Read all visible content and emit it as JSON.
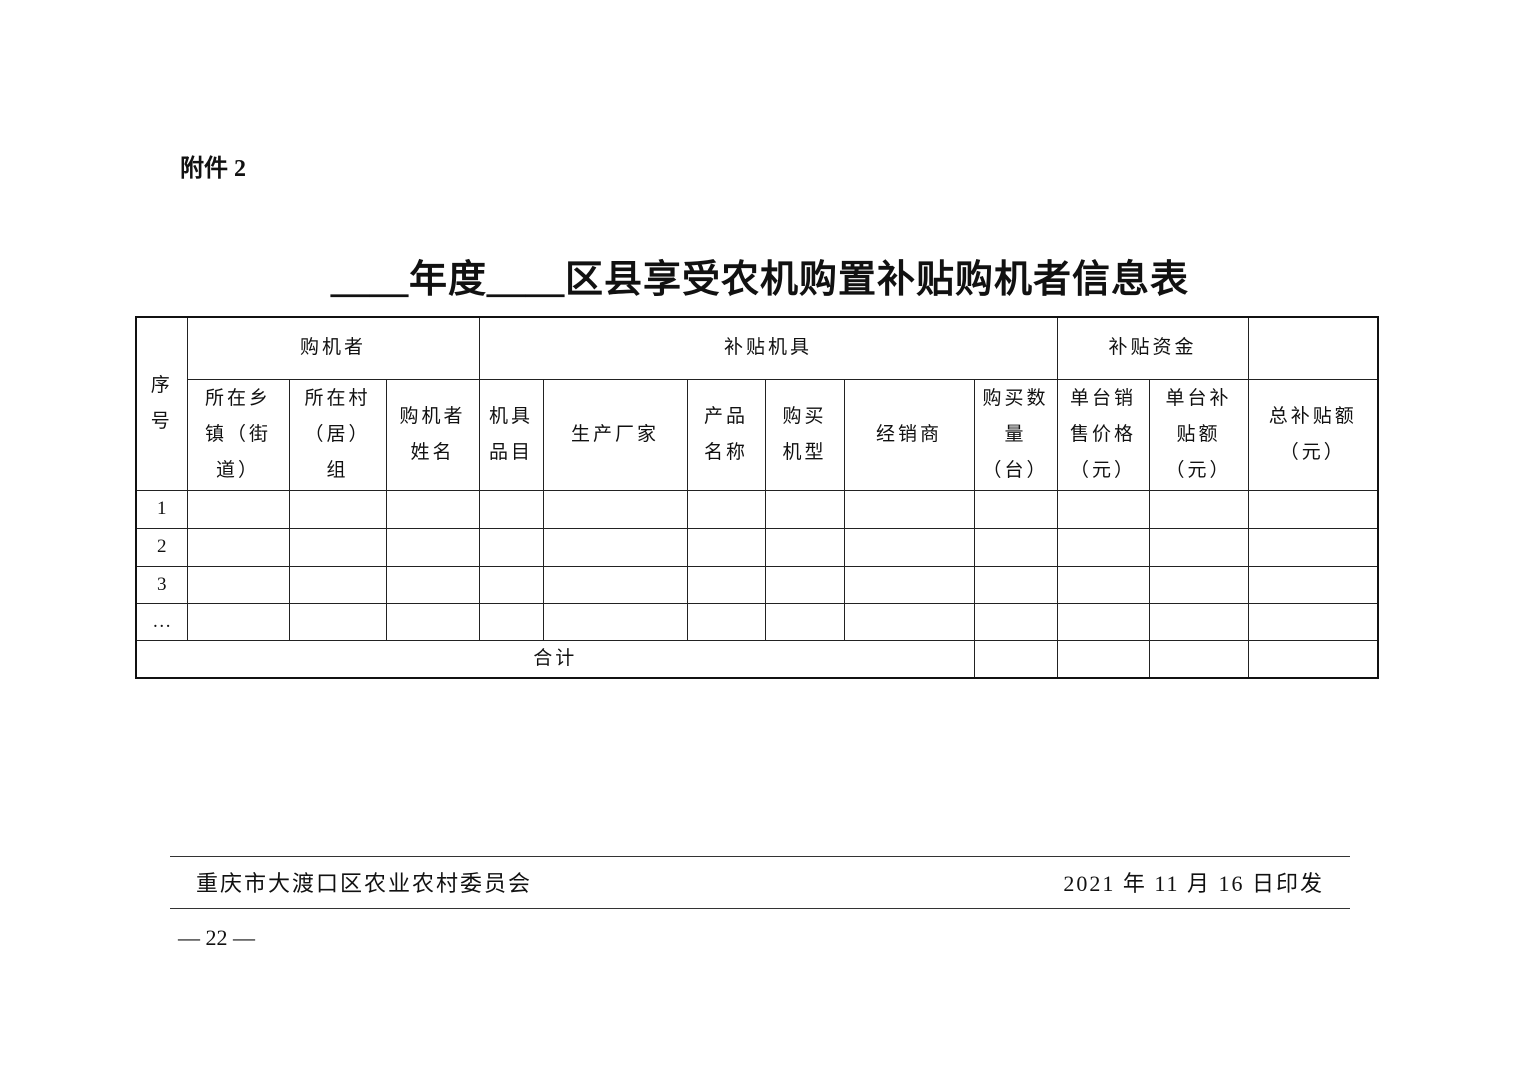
{
  "attachment_label": "附件 2",
  "title": "＿＿年度＿＿区县享受农机购置补贴购机者信息表",
  "table": {
    "group_headers": {
      "index": "序号",
      "buyer": "购机者",
      "machine": "补贴机具",
      "funds": "补贴资金"
    },
    "columns": [
      "所在乡镇（街道）",
      "所在村（居）组",
      "购机者姓名",
      "机具品目",
      "生产厂家",
      "产品名称",
      "购买机型",
      "经销商",
      "购买数量（台）",
      "单台销售价格（元）",
      "单台补贴额（元）",
      "总补贴额（元）"
    ],
    "rows": [
      "1",
      "2",
      "3",
      "…"
    ],
    "total_label": "合计"
  },
  "footer": {
    "issuer": "重庆市大渡口区农业农村委员会",
    "date": "2021 年 11 月 16 日印发",
    "page": "— 22 —"
  }
}
